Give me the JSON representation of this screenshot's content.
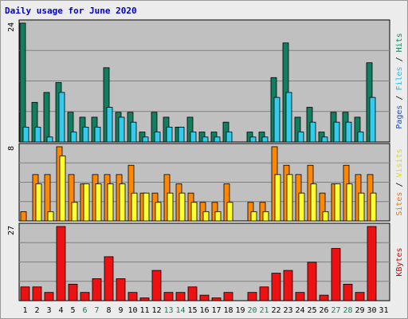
{
  "chart_data": {
    "type": "bar",
    "title": "Daily usage for June 2020",
    "days": [
      "1",
      "2",
      "3",
      "4",
      "5",
      "6",
      "7",
      "8",
      "9",
      "10",
      "11",
      "12",
      "13",
      "14",
      "15",
      "16",
      "17",
      "18",
      "19",
      "20",
      "21",
      "22",
      "23",
      "24",
      "25",
      "26",
      "27",
      "28",
      "29",
      "30",
      "31"
    ],
    "weekend_days": [
      6,
      7,
      13,
      14,
      20,
      21,
      27,
      28
    ],
    "panels": [
      {
        "id": "hits-files-pages",
        "max_label": "24",
        "ymax": 24,
        "legend": [
          {
            "text": "Pages",
            "color": "#1f4fd0"
          },
          {
            "text": "Files",
            "color": "#22bbee"
          },
          {
            "text": "Hits",
            "color": "#117f5f"
          }
        ],
        "series": [
          {
            "name": "Hits",
            "color": "#117f5f",
            "values": [
              24,
              8,
              10,
              12,
              6,
              5,
              5,
              15,
              6,
              6,
              2,
              6,
              5,
              3,
              5,
              2,
              2,
              4,
              0,
              2,
              2,
              13,
              20,
              5,
              7,
              2,
              6,
              6,
              5,
              16,
              0
            ]
          },
          {
            "name": "Files",
            "color": "#33ccee",
            "values": [
              3,
              3,
              1,
              10,
              2,
              3,
              3,
              7,
              5,
              4,
              1,
              2,
              3,
              3,
              2,
              1,
              1,
              2,
              0,
              1,
              1,
              9,
              10,
              2,
              4,
              1,
              4,
              4,
              2,
              9,
              0
            ]
          },
          {
            "name": "Pages",
            "color": "#2255dd",
            "values": [
              0,
              0,
              0,
              0,
              0,
              0,
              0,
              0,
              0,
              0,
              0,
              0,
              0,
              0,
              0,
              0,
              0,
              0,
              0,
              0,
              0,
              0,
              0,
              0,
              0,
              0,
              0,
              0,
              0,
              0,
              0
            ]
          }
        ]
      },
      {
        "id": "sites-visits",
        "max_label": "8",
        "ymax": 8,
        "legend": [
          {
            "text": "Sites",
            "color": "#ee7700"
          },
          {
            "text": "Visits",
            "color": "#dddd00"
          }
        ],
        "series": [
          {
            "name": "Visits",
            "color": "#ff8800",
            "values": [
              1,
              5,
              5,
              8,
              5,
              4,
              5,
              5,
              5,
              6,
              3,
              3,
              5,
              4,
              3,
              2,
              2,
              4,
              0,
              2,
              2,
              8,
              6,
              5,
              6,
              3,
              4,
              6,
              5,
              5,
              0
            ]
          },
          {
            "name": "Sites",
            "color": "#ffff33",
            "values": [
              0,
              4,
              1,
              7,
              2,
              4,
              4,
              4,
              4,
              3,
              3,
              2,
              3,
              3,
              2,
              1,
              1,
              2,
              0,
              1,
              1,
              5,
              5,
              3,
              4,
              1,
              4,
              4,
              3,
              3,
              0
            ]
          }
        ]
      },
      {
        "id": "kbytes",
        "max_label": "27",
        "ymax": 27,
        "legend": [
          {
            "text": "KBytes",
            "color": "#dd0000"
          }
        ],
        "series": [
          {
            "name": "KBytes",
            "color": "#ee1111",
            "values": [
              5,
              5,
              3,
              27,
              6,
              3,
              8,
              16,
              8,
              3,
              1,
              11,
              3,
              3,
              5,
              2,
              1,
              3,
              0,
              3,
              5,
              10,
              11,
              3,
              14,
              2,
              19,
              6,
              3,
              27,
              0
            ]
          }
        ]
      }
    ]
  }
}
